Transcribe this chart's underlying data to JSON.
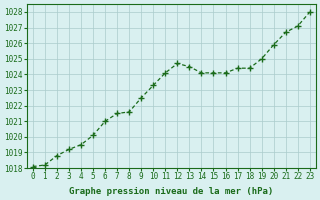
{
  "x": [
    0,
    1,
    2,
    3,
    4,
    5,
    6,
    7,
    8,
    9,
    10,
    11,
    12,
    13,
    14,
    15,
    16,
    17,
    18,
    19,
    20,
    21,
    22,
    23
  ],
  "y": [
    1018.1,
    1018.2,
    1018.8,
    1019.2,
    1019.5,
    1020.1,
    1021.0,
    1021.5,
    1021.6,
    1022.5,
    1023.3,
    1024.1,
    1024.7,
    1024.5,
    1024.1,
    1024.1,
    1024.1,
    1024.4,
    1024.4,
    1025.0,
    1025.9,
    1026.7,
    1027.1,
    1028.0
  ],
  "ylim": [
    1018,
    1028.5
  ],
  "yticks": [
    1018,
    1019,
    1020,
    1021,
    1022,
    1023,
    1024,
    1025,
    1026,
    1027,
    1028
  ],
  "xticks": [
    0,
    1,
    2,
    3,
    4,
    5,
    6,
    7,
    8,
    9,
    10,
    11,
    12,
    13,
    14,
    15,
    16,
    17,
    18,
    19,
    20,
    21,
    22,
    23
  ],
  "line_color": "#1a6b1a",
  "marker_color": "#1a6b1a",
  "bg_color": "#d9f0f0",
  "grid_color": "#aacccc",
  "xlabel": "Graphe pression niveau de la mer (hPa)",
  "xlabel_color": "#1a6b1a",
  "tick_color": "#1a6b1a",
  "border_color": "#1a6b1a"
}
